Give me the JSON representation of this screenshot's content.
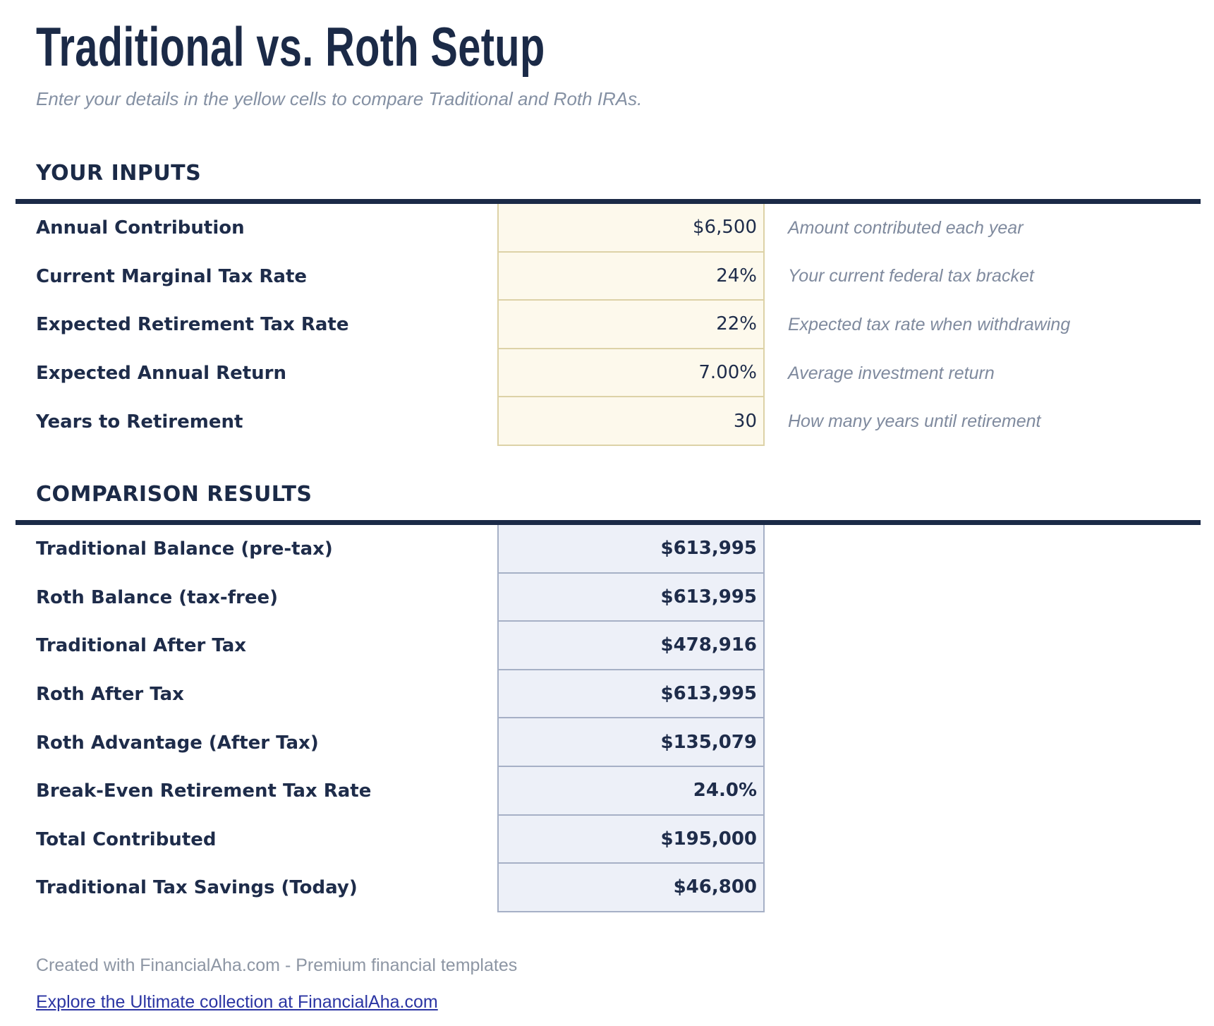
{
  "page": {
    "title": "Traditional vs. Roth Setup",
    "subtitle": "Enter your details in the yellow cells to compare Traditional and Roth IRAs."
  },
  "inputs_section": {
    "heading": "YOUR INPUTS",
    "rows": [
      {
        "label": "Annual Contribution",
        "value": "$6,500",
        "hint": "Amount contributed each year"
      },
      {
        "label": "Current Marginal Tax Rate",
        "value": "24%",
        "hint": "Your current federal tax bracket"
      },
      {
        "label": "Expected Retirement Tax Rate",
        "value": "22%",
        "hint": "Expected tax rate when withdrawing"
      },
      {
        "label": "Expected Annual Return",
        "value": "7.00%",
        "hint": "Average investment return"
      },
      {
        "label": "Years to Retirement",
        "value": "30",
        "hint": "How many years until retirement"
      }
    ]
  },
  "results_section": {
    "heading": "COMPARISON RESULTS",
    "rows": [
      {
        "label": "Traditional Balance (pre-tax)",
        "value": "$613,995"
      },
      {
        "label": "Roth Balance (tax-free)",
        "value": "$613,995"
      },
      {
        "label": "Traditional After Tax",
        "value": "$478,916"
      },
      {
        "label": "Roth After Tax",
        "value": "$613,995"
      },
      {
        "label": "Roth Advantage (After Tax)",
        "value": "$135,079"
      },
      {
        "label": "Break-Even Retirement Tax Rate",
        "value": "24.0%"
      },
      {
        "label": "Total Contributed",
        "value": "$195,000"
      },
      {
        "label": "Traditional Tax Savings (Today)",
        "value": "$46,800"
      }
    ]
  },
  "footer": {
    "credit": "Created with FinancialAha.com - Premium financial templates",
    "link": "Explore the Ultimate collection at FinancialAha.com"
  },
  "colors": {
    "heading_navy": "#1b2a47",
    "input_cell_bg": "#fdf9ec",
    "input_cell_border": "#ddd2a7",
    "result_cell_bg": "#edf0f8",
    "result_cell_border": "#a6b0c6",
    "hint_gray": "#7f8a9e",
    "footer_gray": "#8d96a4",
    "link_blue": "#2b35a3"
  }
}
